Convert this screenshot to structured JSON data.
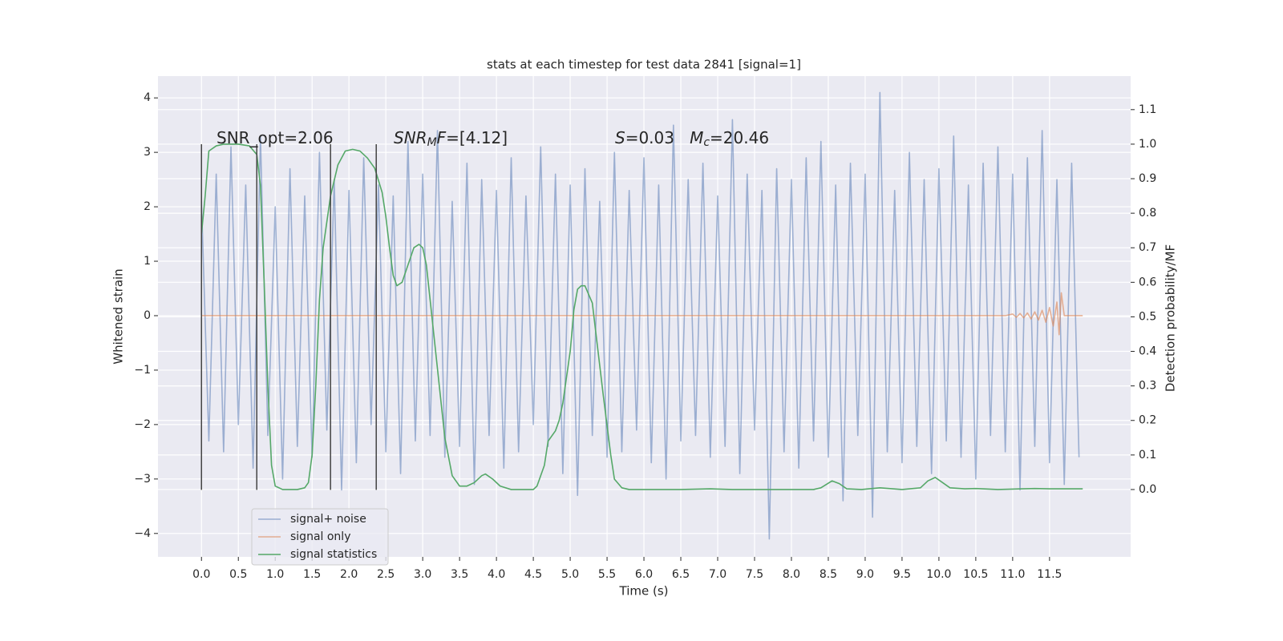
{
  "chart_data": {
    "type": "line",
    "title": "stats at each timestep for test data 2841 [signal=1]",
    "x_label": "Time (s)",
    "y_label": "Whitened strain",
    "y2_label": "Detection probability/MF",
    "xlim": [
      -0.59,
      12.6
    ],
    "ylim": [
      -4.43,
      4.4
    ],
    "y2lim": [
      -0.195,
      1.197
    ],
    "grid": true,
    "legend": "lower left",
    "xticks": [
      {
        "value": 0,
        "label": "0.0"
      },
      {
        "value": 0.5,
        "label": "0.5"
      },
      {
        "value": 1,
        "label": "1.0"
      },
      {
        "value": 1.5,
        "label": "1.5"
      },
      {
        "value": 2,
        "label": "2.0"
      },
      {
        "value": 2.5,
        "label": "2.5"
      },
      {
        "value": 3,
        "label": "3.0"
      },
      {
        "value": 3.5,
        "label": "3.5"
      },
      {
        "value": 4,
        "label": "4.0"
      },
      {
        "value": 4.5,
        "label": "4.5"
      },
      {
        "value": 5,
        "label": "5.0"
      },
      {
        "value": 5.5,
        "label": "5.5"
      },
      {
        "value": 6,
        "label": "6.0"
      },
      {
        "value": 6.5,
        "label": "6.5"
      },
      {
        "value": 7,
        "label": "7.0"
      },
      {
        "value": 7.5,
        "label": "7.5"
      },
      {
        "value": 8,
        "label": "8.0"
      },
      {
        "value": 8.5,
        "label": "8.5"
      },
      {
        "value": 9,
        "label": "9.0"
      },
      {
        "value": 9.5,
        "label": "9.5"
      },
      {
        "value": 10,
        "label": "10.0"
      },
      {
        "value": 10.5,
        "label": "10.5"
      },
      {
        "value": 11,
        "label": "11.0"
      },
      {
        "value": 11.5,
        "label": "11.5"
      }
    ],
    "yticks": [
      {
        "value": -4,
        "label": "−4"
      },
      {
        "value": -3,
        "label": "−3"
      },
      {
        "value": -2,
        "label": "−2"
      },
      {
        "value": -1,
        "label": "−1"
      },
      0,
      1,
      2,
      3,
      4
    ],
    "y2ticks": [
      {
        "value": 0,
        "label": "0.0"
      },
      {
        "value": 0.1,
        "label": "0.1"
      },
      {
        "value": 0.2,
        "label": "0.2"
      },
      {
        "value": 0.3,
        "label": "0.3"
      },
      {
        "value": 0.4,
        "label": "0.4"
      },
      {
        "value": 0.5,
        "label": "0.5"
      },
      {
        "value": 0.6,
        "label": "0.6"
      },
      {
        "value": 0.7,
        "label": "0.7"
      },
      {
        "value": 0.8,
        "label": "0.8"
      },
      {
        "value": 0.9,
        "label": "0.9"
      },
      {
        "value": 1,
        "label": "1.0"
      },
      {
        "value": 1.1,
        "label": "1.1"
      }
    ],
    "vlines": {
      "x": [
        0,
        0.75,
        1.75,
        2.37
      ],
      "ymin": -3.2,
      "ymax": 3.15,
      "color": "#444444"
    },
    "annotations": [
      [
        {
          "text": "SNR_opt=2.06",
          "style": "normal"
        }
      ],
      [
        {
          "text": "SNR",
          "style": "italic"
        },
        {
          "text": "M",
          "style": "sub"
        },
        {
          "text": "F",
          "style": "italic"
        },
        {
          "text": "=[4.12]",
          "style": "normal"
        }
      ],
      [
        {
          "text": "S",
          "style": "italic"
        },
        {
          "text": "=0.03   ",
          "style": "normal"
        },
        {
          "text": "M",
          "style": "italic"
        },
        {
          "text": "c",
          "style": "sub"
        },
        {
          "text": "=20.46",
          "style": "normal"
        }
      ]
    ],
    "series": [
      {
        "name": "signal+ noise",
        "color": "#4c72b0",
        "alpha": 0.5,
        "x": [
          0,
          0.1,
          0.2,
          0.3,
          0.4,
          0.5,
          0.6,
          0.7,
          0.8,
          0.9,
          1,
          1.1,
          1.2,
          1.3,
          1.4,
          1.5,
          1.6,
          1.7,
          1.8,
          1.9,
          2,
          2.1,
          2.2,
          2.3,
          2.4,
          2.5,
          2.6,
          2.7,
          2.8,
          2.9,
          3,
          3.1,
          3.2,
          3.3,
          3.4,
          3.5,
          3.6,
          3.7,
          3.8,
          3.9,
          4,
          4.1,
          4.2,
          4.3,
          4.4,
          4.5,
          4.6,
          4.7,
          4.8,
          4.9,
          5,
          5.1,
          5.2,
          5.3,
          5.4,
          5.5,
          5.6,
          5.7,
          5.8,
          5.9,
          6,
          6.1,
          6.2,
          6.3,
          6.4,
          6.5,
          6.6,
          6.7,
          6.8,
          6.9,
          7,
          7.1,
          7.2,
          7.3,
          7.4,
          7.5,
          7.6,
          7.7,
          7.8,
          7.9,
          8,
          8.1,
          8.2,
          8.3,
          8.4,
          8.5,
          8.6,
          8.7,
          8.8,
          8.9,
          9,
          9.1,
          9.2,
          9.3,
          9.4,
          9.5,
          9.6,
          9.7,
          9.8,
          9.9,
          10,
          10.1,
          10.2,
          10.3,
          10.4,
          10.5,
          10.6,
          10.7,
          10.8,
          10.9,
          11,
          11.1,
          11.2,
          11.3,
          11.4,
          11.5,
          11.6,
          11.7,
          11.8,
          11.9
        ],
        "values": [
          2.1,
          -2.3,
          2.6,
          -2.5,
          3.1,
          -2.0,
          2.4,
          -2.8,
          3.3,
          -2.2,
          2.0,
          -3.0,
          2.7,
          -2.4,
          2.2,
          -2.6,
          3.0,
          -2.1,
          2.5,
          -3.2,
          2.3,
          -2.7,
          2.9,
          -2.0,
          2.4,
          -2.5,
          2.2,
          -2.9,
          3.2,
          -2.3,
          2.6,
          -2.2,
          3.4,
          -2.6,
          2.1,
          -2.4,
          2.8,
          -3.1,
          2.5,
          -2.2,
          2.3,
          -2.8,
          2.9,
          -2.5,
          2.2,
          -2.0,
          3.1,
          -2.4,
          2.6,
          -2.9,
          2.4,
          -3.3,
          2.7,
          -2.2,
          2.1,
          -2.6,
          3.0,
          -2.5,
          2.3,
          -2.1,
          2.9,
          -2.7,
          2.4,
          -3.0,
          3.5,
          -2.3,
          2.5,
          -2.2,
          2.8,
          -2.6,
          2.2,
          -2.4,
          3.6,
          -2.9,
          2.6,
          -2.1,
          2.3,
          -4.1,
          2.7,
          -2.5,
          2.5,
          -2.8,
          2.9,
          -2.3,
          3.2,
          -2.6,
          2.4,
          -3.4,
          2.8,
          -2.2,
          2.6,
          -3.7,
          4.1,
          -2.5,
          2.3,
          -2.7,
          3.0,
          -2.4,
          2.5,
          -2.9,
          2.7,
          -2.3,
          3.3,
          -2.6,
          2.4,
          -3.0,
          2.8,
          -2.2,
          3.1,
          -2.5,
          2.6,
          -3.2,
          2.9,
          -2.4,
          3.4,
          -2.7,
          2.5,
          -3.1,
          2.8,
          -2.6
        ]
      },
      {
        "name": "signal only",
        "color": "#dd8452",
        "alpha": 0.6,
        "x": [
          0,
          10.9,
          11.0,
          11.05,
          11.1,
          11.15,
          11.2,
          11.25,
          11.3,
          11.35,
          11.4,
          11.45,
          11.5,
          11.55,
          11.6,
          11.63,
          11.66,
          11.7,
          11.95
        ],
        "values": [
          0,
          0,
          0.03,
          -0.03,
          0.04,
          -0.04,
          0.05,
          -0.06,
          0.07,
          -0.08,
          0.1,
          -0.12,
          0.15,
          -0.19,
          0.25,
          -0.35,
          0.42,
          0,
          0
        ]
      },
      {
        "name": "signal statistics",
        "color": "#55a868",
        "alpha": 1,
        "axis": "y2",
        "x": [
          0,
          0.05,
          0.1,
          0.2,
          0.3,
          0.5,
          0.65,
          0.75,
          0.8,
          0.85,
          0.9,
          0.95,
          1.0,
          1.1,
          1.3,
          1.4,
          1.45,
          1.5,
          1.55,
          1.6,
          1.65,
          1.75,
          1.85,
          1.95,
          2.05,
          2.15,
          2.25,
          2.35,
          2.45,
          2.5,
          2.55,
          2.6,
          2.65,
          2.72,
          2.8,
          2.88,
          2.95,
          3.0,
          3.05,
          3.1,
          3.2,
          3.3,
          3.4,
          3.5,
          3.6,
          3.7,
          3.8,
          3.85,
          3.95,
          4.05,
          4.2,
          4.5,
          4.55,
          4.65,
          4.7,
          4.8,
          4.85,
          4.9,
          5.0,
          5.05,
          5.1,
          5.15,
          5.2,
          5.3,
          5.35,
          5.45,
          5.55,
          5.6,
          5.7,
          5.8,
          6.5,
          6.9,
          7.2,
          8.3,
          8.4,
          8.55,
          8.65,
          8.75,
          8.95,
          9.2,
          9.5,
          9.75,
          9.85,
          9.95,
          10.05,
          10.15,
          10.35,
          10.5,
          10.8,
          11.3,
          11.5,
          11.95
        ],
        "values": [
          0.74,
          0.85,
          0.98,
          0.995,
          1.0,
          1.0,
          0.995,
          0.97,
          0.88,
          0.6,
          0.3,
          0.07,
          0.01,
          0.0,
          0.0,
          0.005,
          0.02,
          0.1,
          0.3,
          0.55,
          0.7,
          0.85,
          0.94,
          0.98,
          0.985,
          0.98,
          0.96,
          0.93,
          0.86,
          0.79,
          0.7,
          0.62,
          0.59,
          0.6,
          0.65,
          0.7,
          0.71,
          0.7,
          0.65,
          0.55,
          0.35,
          0.15,
          0.04,
          0.01,
          0.01,
          0.02,
          0.04,
          0.045,
          0.03,
          0.01,
          0.0,
          0.0,
          0.01,
          0.07,
          0.14,
          0.17,
          0.2,
          0.25,
          0.4,
          0.52,
          0.58,
          0.59,
          0.59,
          0.54,
          0.45,
          0.27,
          0.1,
          0.03,
          0.005,
          0.0,
          0.0,
          0.002,
          0.0,
          0.0,
          0.005,
          0.025,
          0.017,
          0.002,
          0.0,
          0.005,
          0.0,
          0.005,
          0.025,
          0.035,
          0.02,
          0.005,
          0.002,
          0.003,
          0.0,
          0.003,
          0.002,
          0.002
        ]
      }
    ]
  }
}
